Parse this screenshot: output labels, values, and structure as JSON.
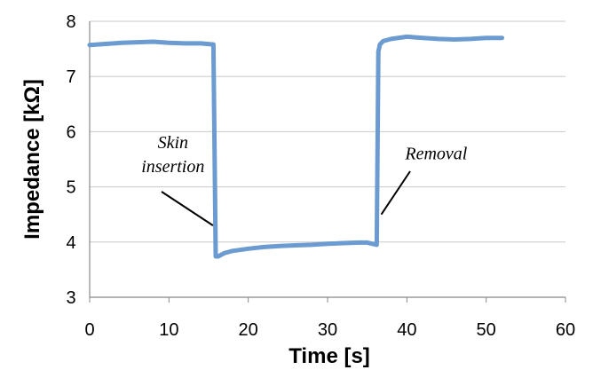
{
  "chart_data": {
    "type": "line",
    "xlabel": "Time [s]",
    "ylabel": "Impedance [kΩ]",
    "xlim": [
      0,
      60
    ],
    "ylim": [
      3,
      8
    ],
    "xticks": [
      "0",
      "10",
      "20",
      "30",
      "40",
      "50",
      "60"
    ],
    "yticks": [
      "3",
      "4",
      "5",
      "6",
      "7",
      "8"
    ],
    "grid": "horizontal",
    "colors": {
      "series": "#6b9bd1",
      "grid": "#c8c8c8",
      "axis": "#888888"
    },
    "series": [
      {
        "x": [
          0,
          2,
          4,
          6,
          8,
          10,
          12,
          14,
          15.6,
          15.9,
          16.2,
          17,
          18,
          20,
          22,
          24,
          26,
          28,
          30,
          32,
          34,
          35,
          36.2,
          36.4,
          36.6,
          37,
          38,
          40,
          42,
          44,
          46,
          48,
          50,
          52
        ],
        "y": [
          7.57,
          7.59,
          7.61,
          7.62,
          7.63,
          7.61,
          7.6,
          7.6,
          7.58,
          3.74,
          3.74,
          3.8,
          3.84,
          3.88,
          3.91,
          3.93,
          3.94,
          3.95,
          3.97,
          3.98,
          3.99,
          3.99,
          3.95,
          7.45,
          7.58,
          7.64,
          7.68,
          7.72,
          7.7,
          7.68,
          7.67,
          7.68,
          7.7,
          7.7
        ]
      }
    ],
    "annotations": [
      {
        "lines": [
          "Skin",
          "insertion"
        ],
        "x": 10.5,
        "y": 5.7,
        "arrow_to": [
          16,
          4.3
        ]
      },
      {
        "lines": [
          "Removal"
        ],
        "x": 43.7,
        "y": 5.5,
        "arrow_to": [
          37,
          4.5
        ]
      }
    ]
  }
}
